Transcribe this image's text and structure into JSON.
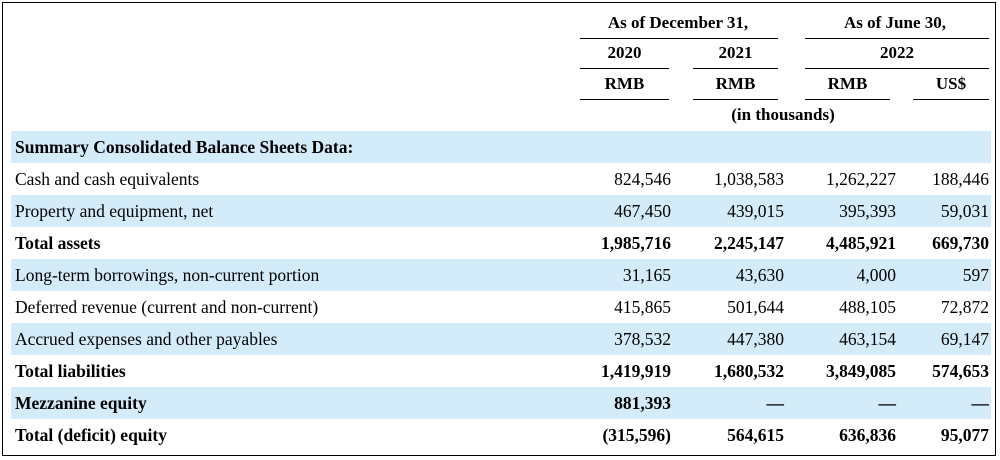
{
  "header": {
    "group1": "As of December 31,",
    "group2": "As of June 30,",
    "years": [
      "2020",
      "2021",
      "2022"
    ],
    "currencies": [
      "RMB",
      "RMB",
      "RMB",
      "US$"
    ],
    "unit_note": "(in thousands)"
  },
  "section_title": "Summary Consolidated Balance Sheets Data:",
  "rows": [
    {
      "label": "Cash and cash equivalents",
      "values": [
        "824,546",
        "1,038,583",
        "1,262,227",
        "188,446"
      ]
    },
    {
      "label": "Property and equipment, net",
      "values": [
        "467,450",
        "439,015",
        "395,393",
        "59,031"
      ]
    },
    {
      "label": "Total assets",
      "values": [
        "1,985,716",
        "2,245,147",
        "4,485,921",
        "669,730"
      ]
    },
    {
      "label": "Long-term borrowings, non-current portion",
      "values": [
        "31,165",
        "43,630",
        "4,000",
        "597"
      ]
    },
    {
      "label": "Deferred revenue (current and non-current)",
      "values": [
        "415,865",
        "501,644",
        "488,105",
        "72,872"
      ]
    },
    {
      "label": "Accrued expenses and other payables",
      "values": [
        "378,532",
        "447,380",
        "463,154",
        "69,147"
      ]
    },
    {
      "label": "Total liabilities",
      "values": [
        "1,419,919",
        "1,680,532",
        "3,849,085",
        "574,653"
      ]
    },
    {
      "label": "Mezzanine equity",
      "values": [
        "881,393",
        "—",
        "—",
        "—"
      ]
    },
    {
      "label": "Total (deficit) equity",
      "values": [
        "(315,596)",
        "564,615",
        "636,836",
        "95,077"
      ]
    }
  ],
  "colors": {
    "row_shade": "#d4ecfa"
  }
}
